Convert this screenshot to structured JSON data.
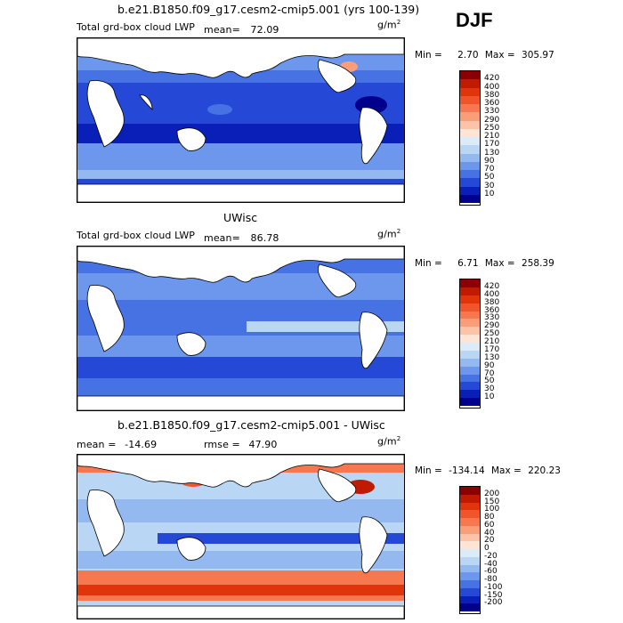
{
  "season": "DJF",
  "chart_data": [
    {
      "type": "heatmap",
      "title": "b.e21.B1850.f09_g17.cesm2-cmip5.001 (yrs 100-139)",
      "left_label": "Total grd-box cloud LWP",
      "mean_label": "mean=",
      "mean_value": "72.09",
      "units": "g/m",
      "units_exp": "2",
      "min_label": "Min =",
      "min_value": "2.70",
      "max_label": "Max =",
      "max_value": "305.97",
      "colorbar_levels": [
        "420",
        "400",
        "380",
        "360",
        "330",
        "290",
        "250",
        "210",
        "170",
        "130",
        "90",
        "70",
        "50",
        "30",
        "10"
      ],
      "colorbar_colors": [
        "#8b0000",
        "#c01a00",
        "#e0350a",
        "#f0542a",
        "#f7784e",
        "#fa9e7a",
        "#fcc3a8",
        "#fde4d4",
        "#dcebf8",
        "#bad6f5",
        "#93b9f0",
        "#6d97ec",
        "#4672e4",
        "#2549d6",
        "#0a1fb8",
        "#00008c"
      ]
    },
    {
      "type": "heatmap",
      "title": "UWisc",
      "left_label": "Total grd-box cloud LWP",
      "mean_label": "mean=",
      "mean_value": "86.78",
      "units": "g/m",
      "units_exp": "2",
      "min_label": "Min =",
      "min_value": "6.71",
      "max_label": "Max =",
      "max_value": "258.39",
      "colorbar_levels": [
        "420",
        "400",
        "380",
        "360",
        "330",
        "290",
        "250",
        "210",
        "170",
        "130",
        "90",
        "70",
        "50",
        "30",
        "10"
      ],
      "colorbar_colors": [
        "#8b0000",
        "#c01a00",
        "#e0350a",
        "#f0542a",
        "#f7784e",
        "#fa9e7a",
        "#fcc3a8",
        "#fde4d4",
        "#dcebf8",
        "#bad6f5",
        "#93b9f0",
        "#6d97ec",
        "#4672e4",
        "#2549d6",
        "#0a1fb8",
        "#00008c"
      ]
    },
    {
      "type": "heatmap",
      "title": "b.e21.B1850.f09_g17.cesm2-cmip5.001 - UWisc",
      "mean_label": "mean =",
      "mean_value": "-14.69",
      "rmse_label": "rmse =",
      "rmse_value": "47.90",
      "units": "g/m",
      "units_exp": "2",
      "min_label": "Min =",
      "min_value": "-134.14",
      "max_label": "Max =",
      "max_value": "220.23",
      "colorbar_levels": [
        "200",
        "150",
        "100",
        "80",
        "60",
        "40",
        "20",
        "0",
        "-20",
        "-40",
        "-60",
        "-80",
        "-100",
        "-150",
        "-200"
      ],
      "colorbar_colors": [
        "#8b0000",
        "#c01a00",
        "#e0350a",
        "#f0542a",
        "#f7784e",
        "#fa9e7a",
        "#fcc3a8",
        "#fde4d4",
        "#dcebf8",
        "#bad6f5",
        "#93b9f0",
        "#6d97ec",
        "#4672e4",
        "#2549d6",
        "#0a1fb8",
        "#00008c"
      ]
    }
  ]
}
